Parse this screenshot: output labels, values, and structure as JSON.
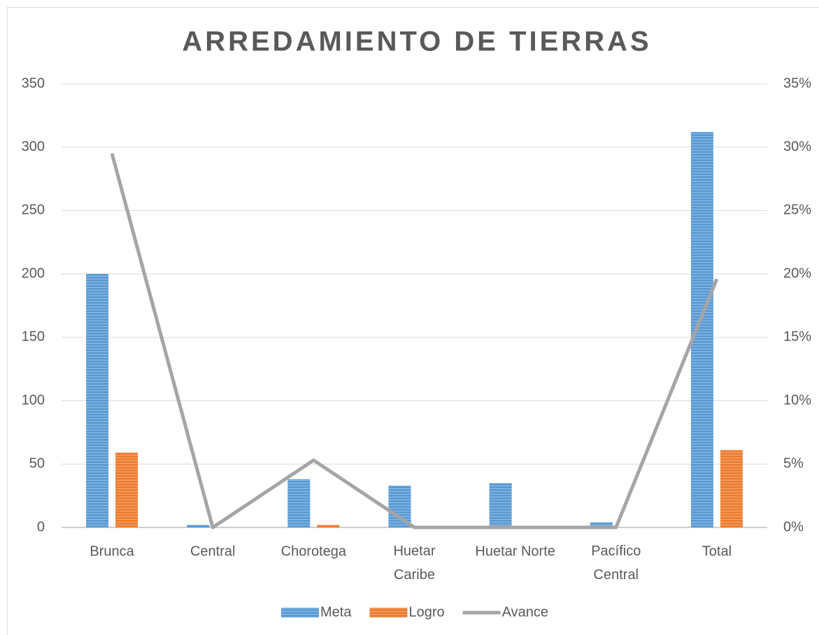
{
  "chart_data": {
    "type": "bar_line",
    "title": "ARREDAMIENTO DE TIERRAS",
    "categories": [
      "Brunca",
      "Central",
      "Chorotega",
      "Huetar Caribe",
      "Huetar Norte",
      "Pacífico Central",
      "Total"
    ],
    "series": [
      {
        "name": "Meta",
        "color": "#5b9bd5",
        "type": "bar",
        "values": [
          200,
          2,
          38,
          33,
          35,
          4,
          312
        ]
      },
      {
        "name": "Logro",
        "color": "#ed7d31",
        "type": "bar",
        "values": [
          59,
          0,
          2,
          0,
          0,
          0,
          61
        ]
      },
      {
        "name": "Avance",
        "color": "#a5a5a5",
        "type": "line",
        "axis": "y2",
        "values": [
          29.5,
          0,
          5.3,
          0,
          0,
          0,
          19.6
        ]
      }
    ],
    "ylim": [
      0,
      350
    ],
    "yticks": [
      0,
      50,
      100,
      150,
      200,
      250,
      300,
      350
    ],
    "y2lim": [
      0,
      35
    ],
    "y2ticks": [
      {
        "value": 0,
        "label": "0%"
      },
      {
        "value": 5,
        "label": "5%"
      },
      {
        "value": 10,
        "label": "10%"
      },
      {
        "value": 15,
        "label": "15%"
      },
      {
        "value": 20,
        "label": "20%"
      },
      {
        "value": 25,
        "label": "25%"
      },
      {
        "value": 30,
        "label": "30%"
      },
      {
        "value": 35,
        "label": "35%"
      }
    ],
    "grid": true,
    "legend": "bottom"
  }
}
